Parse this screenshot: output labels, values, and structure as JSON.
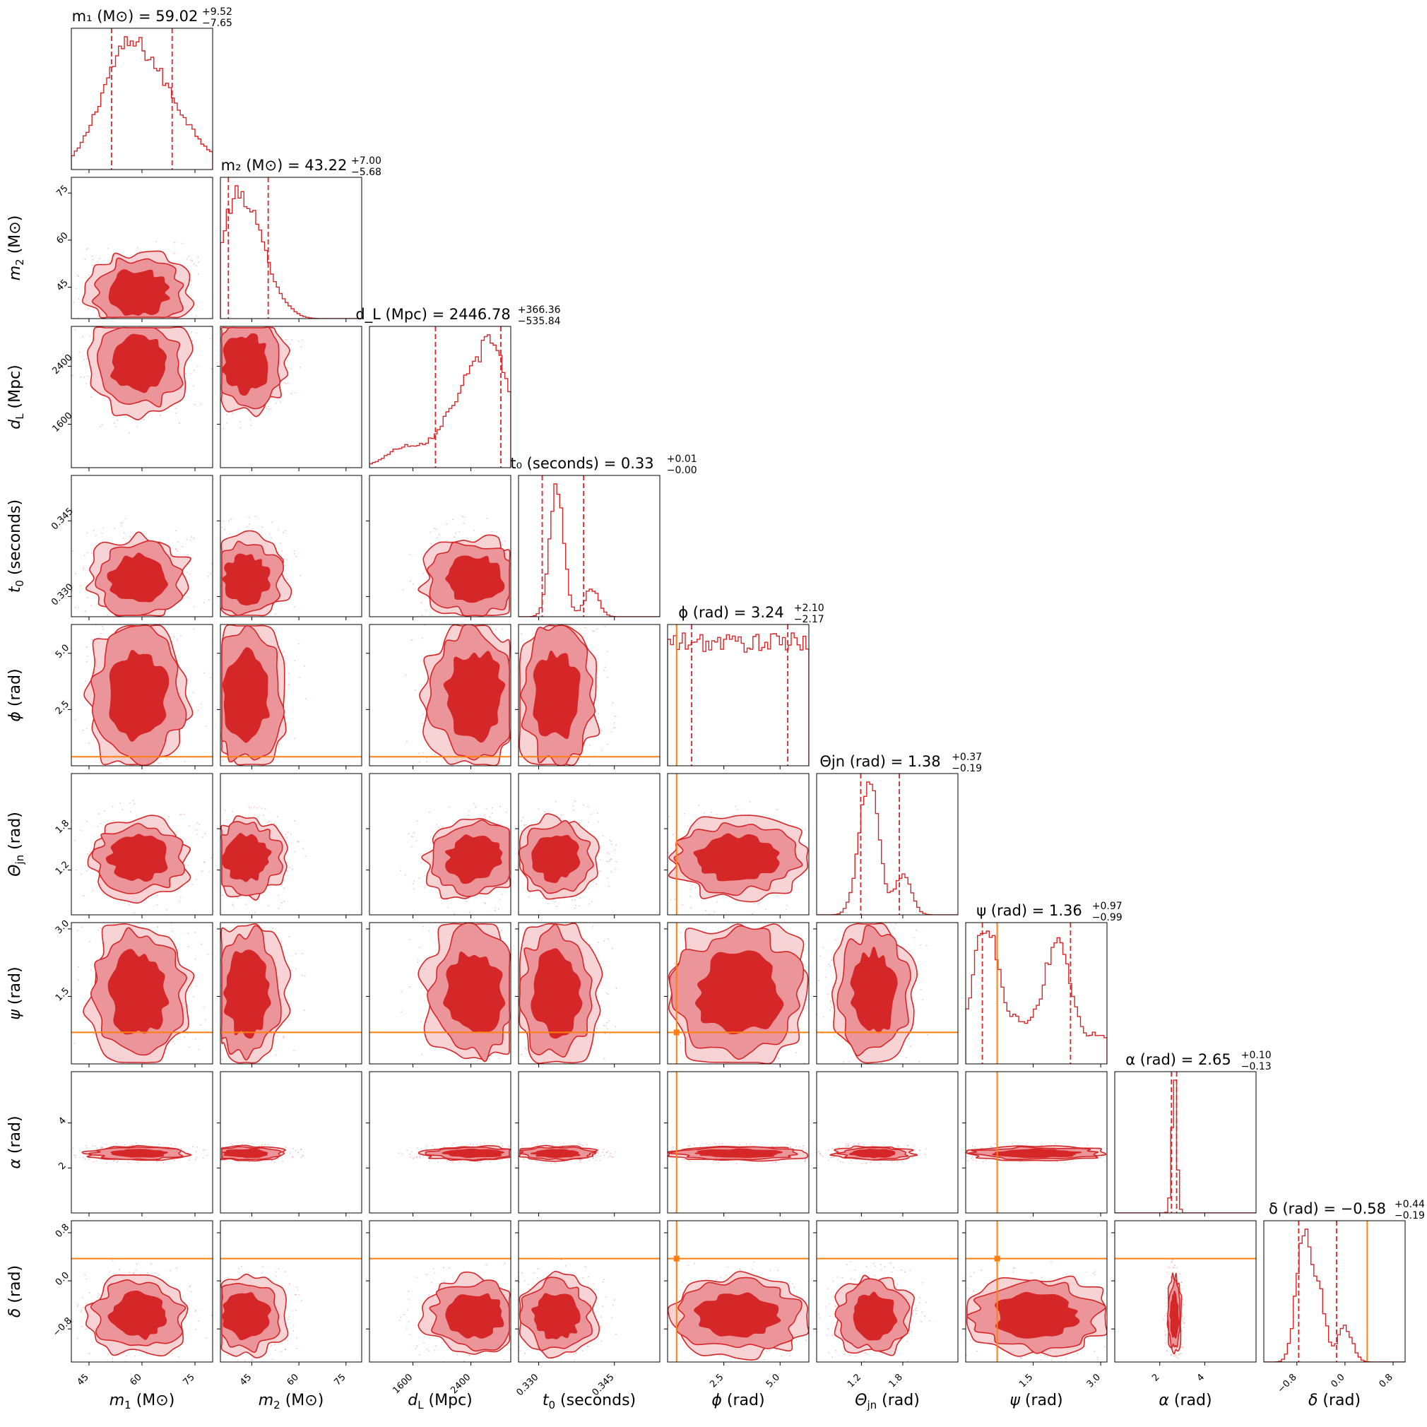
{
  "chart_data": {
    "type": "corner",
    "colors": {
      "posterior": "#d62728",
      "contour_inner": "#d62728",
      "contour_outer": "#eb959a",
      "contour_outermost": "#f7d3d5",
      "injection": "#ff7f0e"
    },
    "parameters": [
      {
        "key": "m1",
        "symbol": "m",
        "sub": "1",
        "unit": "(M⊙)",
        "xlabel": "m₁ (M⊙)",
        "title_main": "m₁ (M⊙) = 59.02",
        "title_sup": "+9.52",
        "title_sub": "−7.65",
        "range": [
          40,
          80
        ],
        "ticks": [
          45,
          60,
          75
        ],
        "tick_labels": [
          "45",
          "60",
          "75"
        ],
        "median": 59.02,
        "lower": 51.37,
        "upper": 68.54,
        "injection": null,
        "hist_peaks": [
          [
            52,
            0.9
          ],
          [
            58,
            1.0
          ],
          [
            66,
            0.75
          ],
          [
            75,
            0.25
          ]
        ],
        "hist_sigma": 6.5
      },
      {
        "key": "m2",
        "symbol": "m",
        "sub": "2",
        "unit": "(M⊙)",
        "xlabel": "m₂ (M⊙)",
        "title_main": "m₂ (M⊙) = 43.22",
        "title_sup": "+7.00",
        "title_sub": "−5.68",
        "range": [
          35,
          80
        ],
        "ticks": [
          45,
          60,
          75
        ],
        "tick_labels": [
          "45",
          "60",
          "75"
        ],
        "median": 43.22,
        "lower": 37.54,
        "upper": 50.22,
        "injection": null,
        "hist_peaks": [
          [
            38,
            0.95
          ],
          [
            44,
            0.9
          ],
          [
            50,
            0.4
          ],
          [
            56,
            0.08
          ]
        ],
        "hist_sigma": 3.5
      },
      {
        "key": "dL",
        "symbol": "d",
        "sub": "L",
        "unit": "(Mpc)",
        "xlabel": "d_L (Mpc)",
        "title_main": "d_L (Mpc) = 2446.78",
        "title_sup": "+366.36",
        "title_sub": "−535.84",
        "range": [
          1000,
          2950
        ],
        "ticks": [
          1600,
          2400
        ],
        "tick_labels": [
          "1600",
          "2400"
        ],
        "median": 2446.78,
        "lower": 1910.94,
        "upper": 2813.14,
        "injection": null,
        "hist_peaks": [
          [
            1500,
            0.18
          ],
          [
            2200,
            0.45
          ],
          [
            2700,
            1.0
          ]
        ],
        "hist_sigma": 260
      },
      {
        "key": "t0",
        "symbol": "t",
        "sub": "0",
        "unit": "(seconds)",
        "xlabel": "t₀ (seconds)",
        "title_main": "t₀ (seconds) = 0.33",
        "title_sup": "+0.01",
        "title_sub": "−0.00",
        "range": [
          0.326,
          0.354
        ],
        "ticks": [
          0.33,
          0.345
        ],
        "tick_labels": [
          "0.330",
          "0.345"
        ],
        "median": 0.3335,
        "lower": 0.3307,
        "upper": 0.3389,
        "injection": null,
        "hist_peaks": [
          [
            0.3336,
            1.0
          ],
          [
            0.3405,
            0.22
          ]
        ],
        "hist_sigma": 0.0014
      },
      {
        "key": "phi",
        "symbol": "ϕ",
        "sub": "",
        "unit": "(rad)",
        "xlabel": "ϕ (rad)",
        "title_main": "ϕ (rad) = 3.24",
        "title_sup": "+2.10",
        "title_sub": "−2.17",
        "range": [
          0,
          6.28
        ],
        "ticks": [
          2.5,
          5.0
        ],
        "tick_labels": [
          "2.5",
          "5.0"
        ],
        "median": 3.24,
        "lower": 1.07,
        "upper": 5.34,
        "injection": 0.4,
        "hist_peaks": [
          [
            3.14,
            0.72
          ]
        ],
        "hist_sigma": 40
      },
      {
        "key": "theta",
        "symbol": "Θ",
        "sub": "jn",
        "unit": "(rad)",
        "xlabel": "Θjn (rad)",
        "title_main": "Θjn (rad) = 1.38",
        "title_sup": "+0.37",
        "title_sub": "−0.19",
        "range": [
          0.55,
          2.6
        ],
        "ticks": [
          1.2,
          1.8
        ],
        "tick_labels": [
          "1.2",
          "1.8"
        ],
        "median": 1.38,
        "lower": 1.19,
        "upper": 1.75,
        "injection": null,
        "hist_peaks": [
          [
            1.35,
            1.0
          ],
          [
            1.8,
            0.35
          ],
          [
            1.2,
            0.4
          ]
        ],
        "hist_sigma": 0.12
      },
      {
        "key": "psi",
        "symbol": "ψ",
        "sub": "",
        "unit": "(rad)",
        "xlabel": "ψ (rad)",
        "title_main": "ψ (rad) = 1.36",
        "title_sup": "+0.97",
        "title_sub": "−0.99",
        "range": [
          0,
          3.14
        ],
        "ticks": [
          1.5,
          3.0
        ],
        "tick_labels": [
          "1.5",
          "3.0"
        ],
        "median": 1.36,
        "lower": 0.37,
        "upper": 2.33,
        "injection": 0.7,
        "hist_peaks": [
          [
            0.45,
            0.85
          ],
          [
            2.05,
            0.75
          ],
          [
            1.25,
            0.22
          ],
          [
            3.0,
            0.18
          ]
        ],
        "hist_sigma": 0.3
      },
      {
        "key": "alpha",
        "symbol": "α",
        "sub": "",
        "unit": "(rad)",
        "xlabel": "α (rad)",
        "title_main": "α (rad) = 2.65",
        "title_sup": "+0.10",
        "title_sub": "−0.13",
        "range": [
          0,
          6.28
        ],
        "ticks": [
          2,
          4
        ],
        "tick_labels": [
          "2",
          "4"
        ],
        "median": 2.65,
        "lower": 2.52,
        "upper": 2.75,
        "injection": null,
        "hist_peaks": [
          [
            2.65,
            1.0
          ]
        ],
        "hist_sigma": 0.11
      },
      {
        "key": "delta",
        "symbol": "δ",
        "sub": "",
        "unit": "(rad)",
        "xlabel": "δ (rad)",
        "title_main": "δ (rad) = −0.58",
        "title_sup": "+0.44",
        "title_sub": "−0.19",
        "range": [
          -1.35,
          1.0
        ],
        "ticks": [
          -0.8,
          0.0,
          0.8
        ],
        "tick_labels": [
          "−0.8",
          "0.0",
          "0.8"
        ],
        "median": -0.58,
        "lower": -0.77,
        "upper": -0.14,
        "injection": 0.37,
        "hist_peaks": [
          [
            -0.7,
            1.0
          ],
          [
            -0.45,
            0.6
          ],
          [
            0.0,
            0.3
          ]
        ],
        "hist_sigma": 0.12
      }
    ]
  }
}
